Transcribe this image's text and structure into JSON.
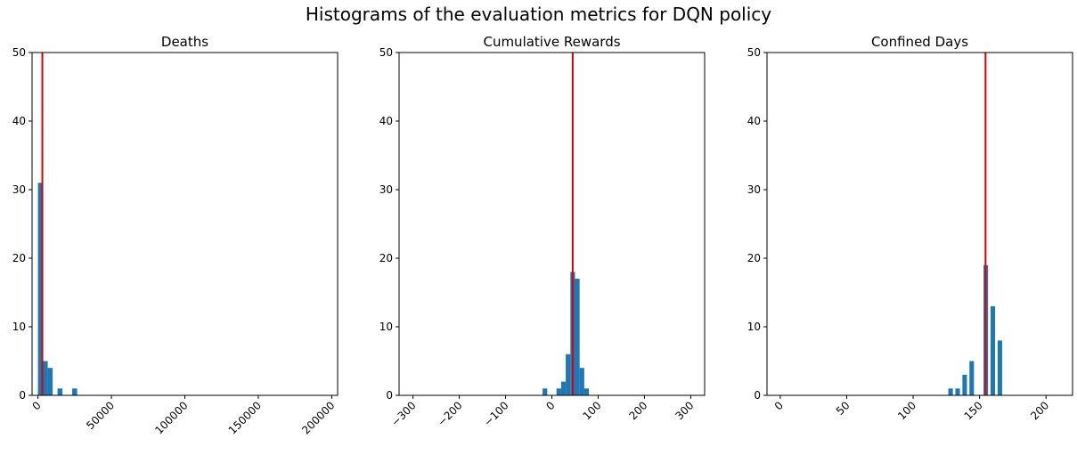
{
  "suptitle": "Histograms of the evaluation metrics for DQN policy",
  "colors": {
    "bar": "#1f77b4",
    "mean_line": "#e00000",
    "axes": "#000000"
  },
  "chart_data": [
    {
      "type": "bar",
      "title": "Deaths",
      "xlim": [
        -4000,
        204000
      ],
      "ylim": [
        0,
        50
      ],
      "xticks": [
        0,
        50000,
        100000,
        150000,
        200000
      ],
      "xtick_labels": [
        "0",
        "50000",
        "100000",
        "150000",
        "200000"
      ],
      "yticks": [
        0,
        10,
        20,
        30,
        40,
        50
      ],
      "bin_width": 3333,
      "bins": [
        {
          "x": 0,
          "count": 31
        },
        {
          "x": 3333,
          "count": 5
        },
        {
          "x": 6667,
          "count": 4
        },
        {
          "x": 13333,
          "count": 1
        },
        {
          "x": 23333,
          "count": 1
        }
      ],
      "mean_line_x": 3000
    },
    {
      "type": "bar",
      "title": "Cumulative Rewards",
      "xlim": [
        -330,
        330
      ],
      "ylim": [
        0,
        50
      ],
      "xticks": [
        -300,
        -200,
        -100,
        0,
        100,
        200,
        300
      ],
      "xtick_labels": [
        "−300",
        "−200",
        "−100",
        "0",
        "100",
        "200",
        "300"
      ],
      "yticks": [
        0,
        10,
        20,
        30,
        40,
        50
      ],
      "bin_width": 10,
      "bins": [
        {
          "x": -20,
          "count": 1
        },
        {
          "x": 10,
          "count": 1
        },
        {
          "x": 20,
          "count": 2
        },
        {
          "x": 30,
          "count": 6
        },
        {
          "x": 40,
          "count": 18
        },
        {
          "x": 50,
          "count": 17
        },
        {
          "x": 60,
          "count": 4
        },
        {
          "x": 70,
          "count": 1
        }
      ],
      "mean_line_x": 45
    },
    {
      "type": "bar",
      "title": "Confined Days",
      "xlim": [
        -10,
        220
      ],
      "ylim": [
        0,
        50
      ],
      "xticks": [
        0,
        50,
        100,
        150,
        200
      ],
      "xtick_labels": [
        "0",
        "50",
        "100",
        "150",
        "200"
      ],
      "yticks": [
        0,
        10,
        20,
        30,
        40,
        50
      ],
      "bin_width": 3.4,
      "bins": [
        {
          "x": 126.5,
          "count": 1
        },
        {
          "x": 131.8,
          "count": 1
        },
        {
          "x": 137.1,
          "count": 3
        },
        {
          "x": 142.4,
          "count": 5
        },
        {
          "x": 153.0,
          "count": 19
        },
        {
          "x": 158.3,
          "count": 13
        },
        {
          "x": 163.6,
          "count": 8
        }
      ],
      "mean_line_x": 154.5
    }
  ]
}
